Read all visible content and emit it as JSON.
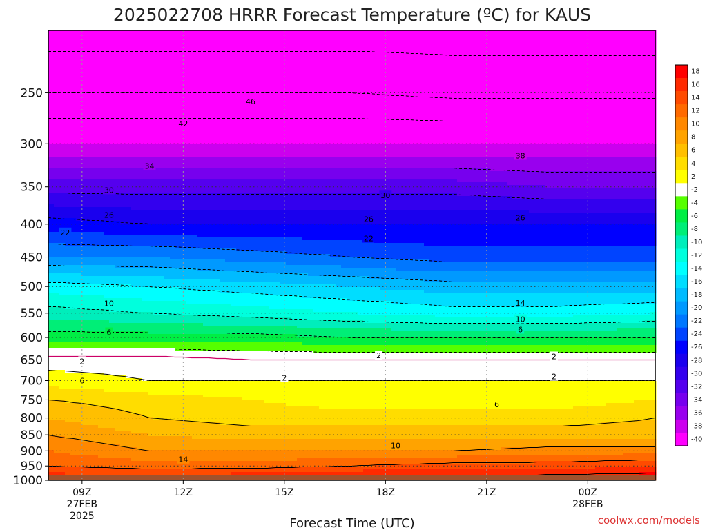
{
  "chart_data": {
    "type": "heatmap",
    "title": "2025022708 HRRR Forecast Temperature (ºC) for KAUS",
    "xlabel": "Forecast Time (UTC)",
    "ylabel": "",
    "credit": "coolwx.com/models",
    "x_ticks": [
      {
        "t": 1,
        "lines": [
          "09Z",
          "27FEB",
          "2025"
        ]
      },
      {
        "t": 4,
        "lines": [
          "12Z"
        ]
      },
      {
        "t": 7,
        "lines": [
          "15Z"
        ]
      },
      {
        "t": 10,
        "lines": [
          "18Z"
        ]
      },
      {
        "t": 13,
        "lines": [
          "21Z"
        ]
      },
      {
        "t": 16,
        "lines": [
          "00Z",
          "28FEB"
        ]
      }
    ],
    "xlim": [
      0,
      18
    ],
    "y_scale": "log",
    "ylim": [
      1000,
      200
    ],
    "y_ticks": [
      250,
      300,
      350,
      400,
      450,
      500,
      550,
      600,
      650,
      700,
      750,
      800,
      850,
      900,
      950,
      1000
    ],
    "surface_pressure": 985,
    "colorbar": {
      "labels": [
        "18",
        "16",
        "14",
        "12",
        "10",
        "8",
        "6",
        "4",
        "2",
        "-2",
        "-4",
        "-6",
        "-8",
        "-10",
        "-12",
        "-14",
        "-16",
        "-18",
        "-20",
        "-22",
        "-24",
        "-26",
        "-28",
        "-30",
        "-32",
        "-34",
        "-36",
        "-38",
        "-40"
      ],
      "colors": [
        "#ff0000",
        "#ff2a00",
        "#ff4b00",
        "#ff6a00",
        "#ff8800",
        "#ffa300",
        "#ffbf00",
        "#ffdd00",
        "#ffff00",
        "#ffffff",
        "#55ff00",
        "#00ee44",
        "#00ee77",
        "#00eebb",
        "#00ffdd",
        "#00ffff",
        "#00ddff",
        "#00bbff",
        "#0099ff",
        "#0077ff",
        "#0044ff",
        "#0000ff",
        "#1a00ee",
        "#3300ee",
        "#5500ee",
        "#7700ee",
        "#9900ee",
        "#cc00ee",
        "#ff00ff"
      ]
    },
    "profiles": {
      "t": [
        0,
        3,
        6,
        9,
        12,
        15,
        18
      ],
      "pressure": [
        1000,
        950,
        900,
        850,
        800,
        750,
        700,
        650,
        600,
        550,
        500,
        450,
        400,
        350,
        300,
        250,
        200
      ],
      "temps": [
        [
          18,
          18,
          19,
          20,
          19,
          20,
          20
        ],
        [
          14,
          13,
          13,
          14,
          15,
          15,
          16
        ],
        [
          12,
          10,
          10,
          10,
          10,
          11,
          11
        ],
        [
          10,
          8,
          7,
          7,
          7,
          7,
          7
        ],
        [
          8,
          6,
          5,
          5,
          5,
          5,
          6
        ],
        [
          6,
          5,
          4,
          3,
          3,
          3,
          4
        ],
        [
          3,
          2,
          2,
          2,
          2,
          2,
          2
        ],
        [
          1,
          1,
          0,
          0,
          0,
          0,
          0
        ],
        [
          -5,
          -5,
          -5,
          -6,
          -6,
          -6,
          -6
        ],
        [
          -9,
          -10,
          -11,
          -12,
          -13,
          -13,
          -12
        ],
        [
          -13,
          -14,
          -15,
          -16,
          -17,
          -17,
          -17
        ],
        [
          -20,
          -20,
          -21,
          -22,
          -23,
          -23,
          -23
        ],
        [
          -25,
          -26,
          -26,
          -26,
          -26,
          -26,
          -26
        ],
        [
          -31,
          -31,
          -31,
          -31,
          -31,
          -32,
          -32
        ],
        [
          -38,
          -38,
          -38,
          -38,
          -38,
          -38,
          -38
        ],
        [
          -46,
          -46,
          -46,
          -46,
          -47,
          -47,
          -47
        ],
        [
          -52,
          -52,
          -52,
          -52,
          -52,
          -52,
          -52
        ]
      ]
    },
    "contour_labels": [
      {
        "t": 1.0,
        "p": 700,
        "text": "6"
      },
      {
        "t": 1.0,
        "p": 653,
        "text": "2"
      },
      {
        "t": 4.0,
        "p": 928,
        "text": "14"
      },
      {
        "t": 10.3,
        "p": 883,
        "text": "10"
      },
      {
        "t": 7.0,
        "p": 693,
        "text": "2"
      },
      {
        "t": 9.8,
        "p": 640,
        "text": "2"
      },
      {
        "t": 13.3,
        "p": 762,
        "text": "6"
      },
      {
        "t": 15.0,
        "p": 690,
        "text": "2"
      },
      {
        "t": 15.0,
        "p": 642,
        "text": "2"
      },
      {
        "t": 1.8,
        "p": 589,
        "text": "6"
      },
      {
        "t": 1.8,
        "p": 531,
        "text": "10"
      },
      {
        "t": 14.0,
        "p": 583,
        "text": "6"
      },
      {
        "t": 14.0,
        "p": 562,
        "text": "10"
      },
      {
        "t": 14.0,
        "p": 530,
        "text": "14"
      },
      {
        "t": 0.5,
        "p": 412,
        "text": "22"
      },
      {
        "t": 9.5,
        "p": 421,
        "text": "22"
      },
      {
        "t": 1.8,
        "p": 387,
        "text": "26"
      },
      {
        "t": 9.5,
        "p": 393,
        "text": "26"
      },
      {
        "t": 14.0,
        "p": 391,
        "text": "26"
      },
      {
        "t": 1.8,
        "p": 354,
        "text": "30"
      },
      {
        "t": 10.0,
        "p": 361,
        "text": "30"
      },
      {
        "t": 3.0,
        "p": 325,
        "text": "34"
      },
      {
        "t": 14.0,
        "p": 313,
        "text": "38"
      },
      {
        "t": 4.0,
        "p": 279,
        "text": "42"
      },
      {
        "t": 6.0,
        "p": 258,
        "text": "46"
      }
    ]
  }
}
